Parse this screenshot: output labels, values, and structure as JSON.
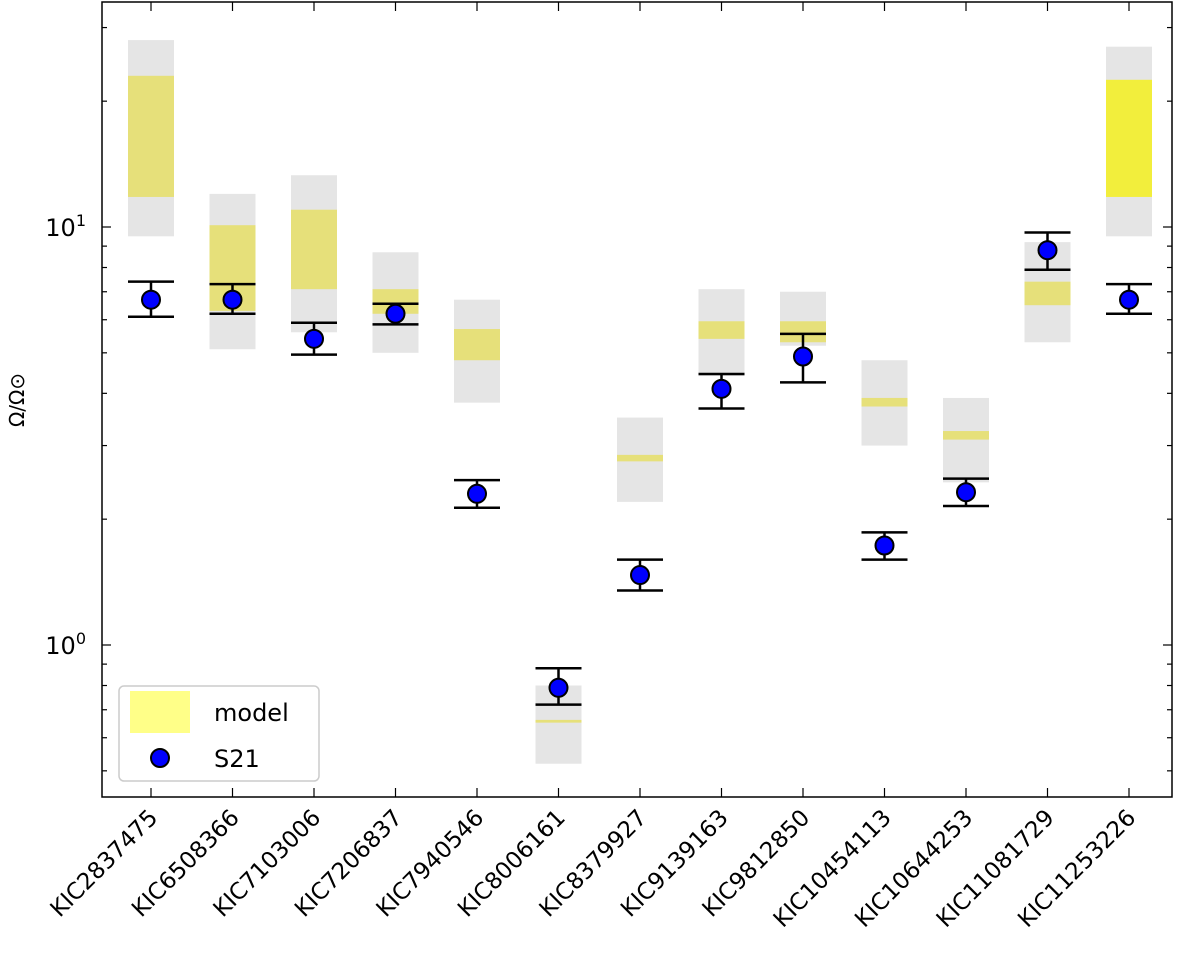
{
  "chart_data": {
    "type": "scatter",
    "title": "",
    "xlabel": "",
    "ylabel": "Ω/Ω⊙",
    "yscale": "log",
    "ylim": [
      0.45,
      35
    ],
    "y_ticks": [
      {
        "value": 1,
        "base": "10",
        "exp": "0"
      },
      {
        "value": 10,
        "base": "10",
        "exp": "1"
      }
    ],
    "categories": [
      "KIC2837475",
      "KIC6508366",
      "KIC7103006",
      "KIC7206837",
      "KIC7940546",
      "KIC8006161",
      "KIC8379927",
      "KIC9139163",
      "KIC9812850",
      "KIC10454113",
      "KIC10644253",
      "KIC11081729",
      "KIC11253226"
    ],
    "series": [
      {
        "name": "model",
        "kind": "band",
        "color": "#ffff66",
        "range_outer": [
          [
            9.5,
            28
          ],
          [
            5.1,
            12
          ],
          [
            5.6,
            13.3
          ],
          [
            5.0,
            8.7
          ],
          [
            3.8,
            6.7
          ],
          [
            0.52,
            0.8
          ],
          [
            2.2,
            3.5
          ],
          [
            4.4,
            7.1
          ],
          [
            5.2,
            7.0
          ],
          [
            3.0,
            4.8
          ],
          [
            2.45,
            3.9
          ],
          [
            5.3,
            9.2
          ],
          [
            9.5,
            27
          ]
        ],
        "range_inner": [
          [
            11.8,
            23
          ],
          [
            6.3,
            10.1
          ],
          [
            7.1,
            11.0
          ],
          [
            6.2,
            7.1
          ],
          [
            4.8,
            5.7
          ],
          [
            0.652,
            0.662
          ],
          [
            2.75,
            2.85
          ],
          [
            5.4,
            5.95
          ],
          [
            5.3,
            5.95
          ],
          [
            3.72,
            3.9
          ],
          [
            3.1,
            3.25
          ],
          [
            6.5,
            7.4
          ],
          [
            11.8,
            22.5
          ]
        ]
      },
      {
        "name": "S21",
        "kind": "points",
        "color": "#0000ff",
        "values": [
          6.7,
          6.7,
          5.4,
          6.2,
          2.3,
          0.79,
          1.47,
          4.1,
          4.9,
          1.73,
          2.32,
          8.8,
          6.7
        ],
        "err_low": [
          6.1,
          6.2,
          4.95,
          5.85,
          2.13,
          0.72,
          1.35,
          3.68,
          4.25,
          1.6,
          2.15,
          7.9,
          6.2
        ],
        "err_high": [
          7.4,
          7.3,
          5.9,
          6.55,
          2.48,
          0.88,
          1.6,
          4.45,
          5.55,
          1.86,
          2.5,
          9.7,
          7.3
        ]
      }
    ],
    "legend": {
      "position": "bottom-left",
      "entries": [
        "model",
        "S21"
      ]
    }
  }
}
